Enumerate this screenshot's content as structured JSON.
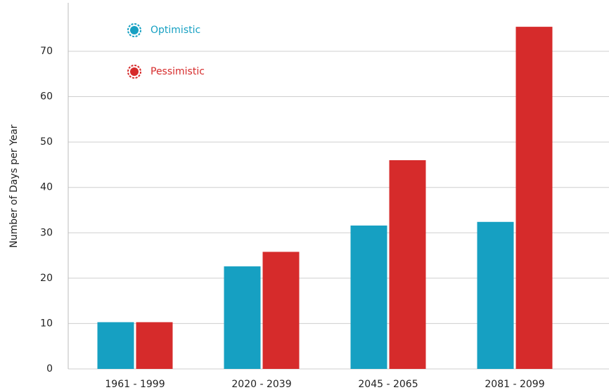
{
  "chart_data": {
    "type": "bar",
    "y_label": "Number of Days per Year",
    "categories": [
      "1961 - 1999",
      "2020 - 2039",
      "2045 - 2065",
      "2081 - 2099"
    ],
    "series": [
      {
        "name": "Optimistic",
        "color": "#16a0c2",
        "values": [
          10.3,
          22.6,
          31.6,
          32.4
        ]
      },
      {
        "name": "Pessimistic",
        "color": "#d62b2b",
        "values": [
          10.3,
          25.8,
          46.0,
          75.4
        ]
      }
    ],
    "ylim": [
      0,
      80
    ],
    "yticks": [
      0,
      10,
      20,
      30,
      40,
      50,
      60,
      70
    ],
    "grid": true
  }
}
